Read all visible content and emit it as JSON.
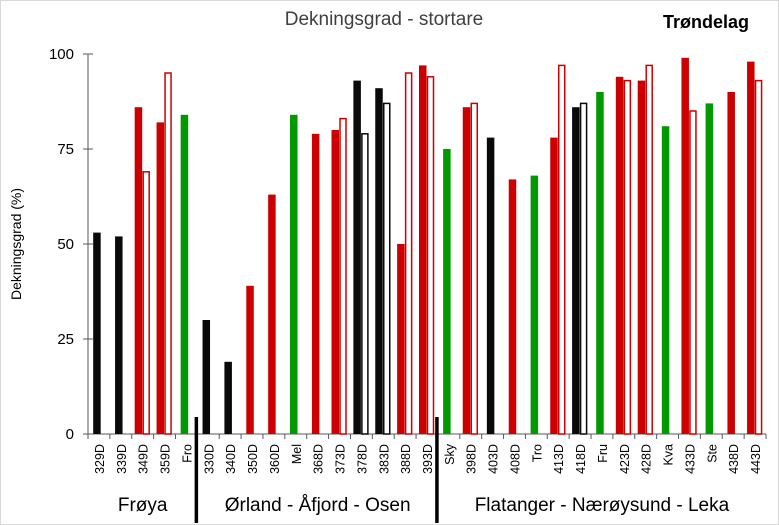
{
  "chart_data": {
    "type": "bar",
    "title": "Dekningsgrad - stortare",
    "region_label": "Trøndelag",
    "ylabel": "Dekningsgrad  (%)",
    "xlabel": "",
    "ylim": [
      0,
      100
    ],
    "yticks": [
      0,
      25,
      50,
      75,
      100
    ],
    "grid": false,
    "colors": {
      "red": "#cc0000",
      "green": "#009900",
      "black": "#0a0a0a"
    },
    "categories": [
      "329D",
      "339D",
      "349D",
      "359D",
      "Fro",
      "330D",
      "340D",
      "350D",
      "360D",
      "Mel",
      "368D",
      "373D",
      "378D",
      "383D",
      "388D",
      "393D",
      "Sky",
      "398D",
      "403D",
      "408D",
      "Tro",
      "413D",
      "418D",
      "Fru",
      "423D",
      "428D",
      "Kva",
      "433D",
      "Ste",
      "438D",
      "443D"
    ],
    "bar_colors": [
      "black",
      "black",
      "red",
      "red",
      "green",
      "black",
      "black",
      "red",
      "red",
      "green",
      "red",
      "red",
      "black",
      "black",
      "red",
      "red",
      "green",
      "red",
      "black",
      "red",
      "green",
      "red",
      "black",
      "green",
      "red",
      "red",
      "green",
      "red",
      "green",
      "red",
      "red"
    ],
    "series": [
      {
        "style": "filled",
        "values": [
          53,
          52,
          86,
          82,
          84,
          30,
          19,
          39,
          63,
          84,
          79,
          80,
          93,
          91,
          50,
          97,
          75,
          86,
          78,
          67,
          68,
          78,
          86,
          90,
          94,
          93,
          81,
          99,
          87,
          90,
          98
        ]
      },
      {
        "style": "outline",
        "values": [
          null,
          null,
          69,
          95,
          null,
          null,
          null,
          null,
          null,
          null,
          null,
          83,
          79,
          87,
          95,
          94,
          null,
          87,
          null,
          null,
          null,
          97,
          87,
          null,
          93,
          97,
          null,
          85,
          null,
          null,
          93
        ]
      }
    ],
    "groups": [
      {
        "label": "Frøya",
        "start": 0,
        "end": 4
      },
      {
        "label": "Ørland - Åfjord - Osen",
        "start": 5,
        "end": 15
      },
      {
        "label": "Flatanger - Nærøysund - Leka",
        "start": 16,
        "end": 30
      }
    ]
  }
}
